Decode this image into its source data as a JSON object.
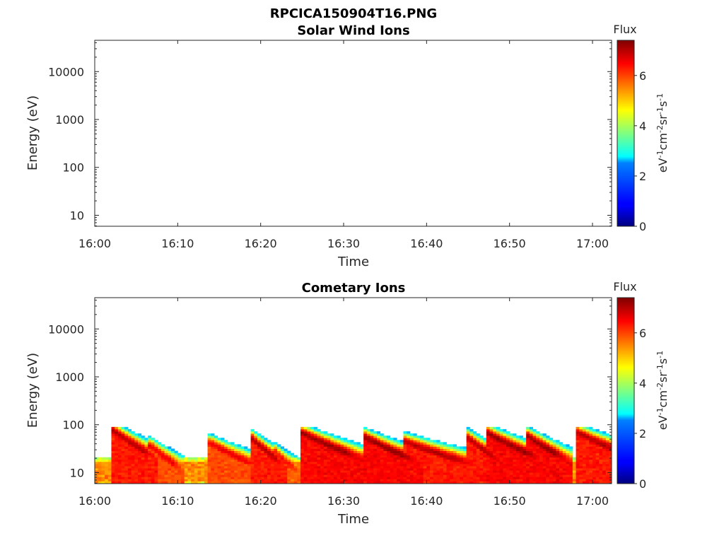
{
  "figure_title": "RPCICA150904T16.PNG",
  "chart_data": [
    {
      "type": "heatmap",
      "title": "Solar Wind Ions",
      "xlabel": "Time",
      "ylabel": "Energy (eV)",
      "x_ticks": [
        "16:00",
        "16:10",
        "16:20",
        "16:30",
        "16:40",
        "16:50",
        "17:00"
      ],
      "y_scale": "log",
      "y_ticks": [
        "10",
        "100",
        "1000",
        "10000"
      ],
      "colorbar": {
        "title": "Flux",
        "label": "eV-1cm-2sr-1s-1",
        "ticks": [
          "0",
          "2",
          "4",
          "6"
        ],
        "range": [
          0,
          7.4
        ],
        "colormap": "jet"
      },
      "data": "empty"
    },
    {
      "type": "heatmap",
      "title": "Cometary Ions",
      "xlabel": "Time",
      "ylabel": "Energy (eV)",
      "x_ticks": [
        "16:00",
        "16:10",
        "16:20",
        "16:30",
        "16:40",
        "16:50",
        "17:00"
      ],
      "y_scale": "log",
      "y_ticks": [
        "10",
        "100",
        "1000",
        "10000"
      ],
      "colorbar": {
        "title": "Flux",
        "label": "eV-1cm-2sr-1s-1",
        "ticks": [
          "0",
          "2",
          "4",
          "6"
        ],
        "range": [
          0,
          7.4
        ],
        "colormap": "jet"
      },
      "time_range_min": [
        0,
        62.3
      ],
      "energy_range_eV": [
        6,
        45000
      ],
      "background": {
        "energy_max_eV": 22,
        "flux": 5.8
      },
      "bursts": [
        {
          "time_min": 2.0,
          "energy_peak_eV": 70,
          "decay_min": 3.5,
          "flux": 7.0
        },
        {
          "time_min": 6.6,
          "energy_peak_eV": 30,
          "decay_min": 2.5,
          "flux": 6.6
        },
        {
          "time_min": 13.8,
          "energy_peak_eV": 35,
          "decay_min": 4.0,
          "flux": 6.6
        },
        {
          "time_min": 18.8,
          "energy_peak_eV": 45,
          "decay_min": 2.5,
          "flux": 7.0
        },
        {
          "time_min": 21.5,
          "energy_peak_eV": 22,
          "decay_min": 2.0,
          "flux": 6.4
        },
        {
          "time_min": 24.9,
          "energy_peak_eV": 60,
          "decay_min": 5.0,
          "flux": 7.2
        },
        {
          "time_min": 32.3,
          "energy_peak_eV": 50,
          "decay_min": 4.5,
          "flux": 7.2
        },
        {
          "time_min": 37.0,
          "energy_peak_eV": 40,
          "decay_min": 6.0,
          "flux": 7.0
        },
        {
          "time_min": 44.6,
          "energy_peak_eV": 50,
          "decay_min": 3.0,
          "flux": 7.0
        },
        {
          "time_min": 47.2,
          "energy_peak_eV": 60,
          "decay_min": 4.5,
          "flux": 7.2
        },
        {
          "time_min": 51.8,
          "energy_peak_eV": 55,
          "decay_min": 3.5,
          "flux": 7.2
        },
        {
          "time_min": 57.8,
          "energy_peak_eV": 65,
          "decay_min": 5.0,
          "flux": 7.0
        }
      ]
    }
  ]
}
